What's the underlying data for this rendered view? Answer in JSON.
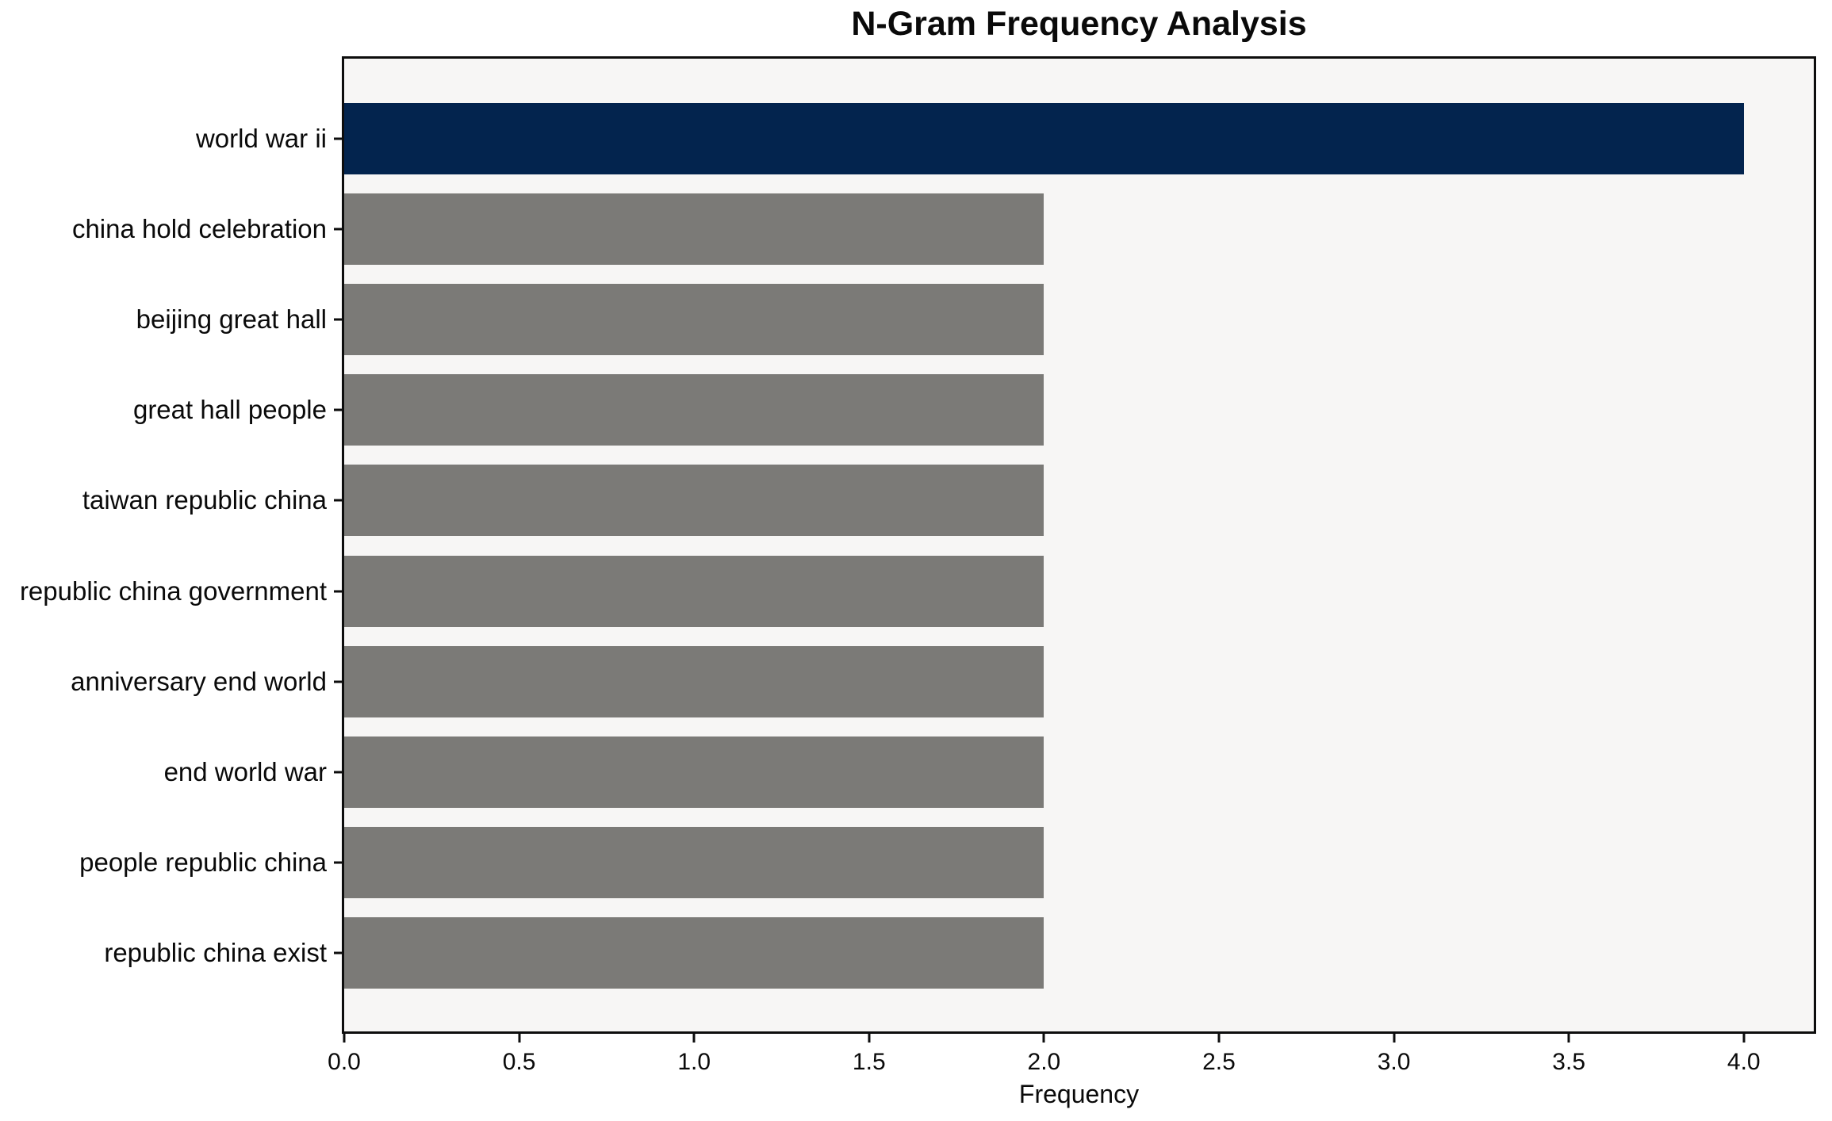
{
  "chart_data": {
    "type": "bar",
    "orientation": "horizontal",
    "title": "N-Gram Frequency Analysis",
    "xlabel": "Frequency",
    "ylabel": "",
    "categories": [
      "world war ii",
      "china hold celebration",
      "beijing great hall",
      "great hall people",
      "taiwan republic china",
      "republic china government",
      "anniversary end world",
      "end world war",
      "people republic china",
      "republic china exist"
    ],
    "values": [
      4,
      2,
      2,
      2,
      2,
      2,
      2,
      2,
      2,
      2
    ],
    "bar_colors": [
      "#03244e",
      "#7b7a77",
      "#7b7a77",
      "#7b7a77",
      "#7b7a77",
      "#7b7a77",
      "#7b7a77",
      "#7b7a77",
      "#7b7a77",
      "#7b7a77"
    ],
    "xlim": [
      0,
      4.2
    ],
    "xticks": [
      0.0,
      0.5,
      1.0,
      1.5,
      2.0,
      2.5,
      3.0,
      3.5,
      4.0
    ],
    "xtick_labels": [
      "0.0",
      "0.5",
      "1.0",
      "1.5",
      "2.0",
      "2.5",
      "3.0",
      "3.5",
      "4.0"
    ],
    "grid": false,
    "legend_position": "none",
    "plot_background": "#f7f6f5",
    "spine_color": "#0d0d0d",
    "highlight_color": "#03244e",
    "default_color": "#7b7a77"
  }
}
